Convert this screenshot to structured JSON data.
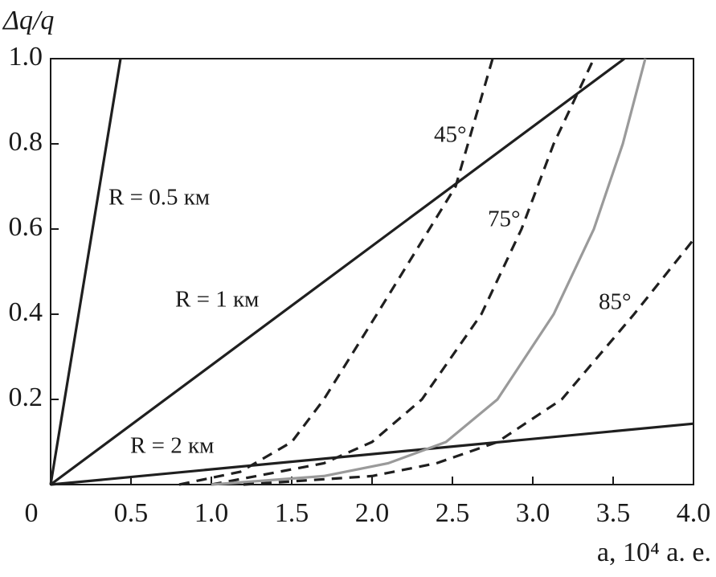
{
  "chart_data": {
    "type": "line",
    "y_label": "Δq/q",
    "x_label": "a, 10⁴ a. e.",
    "xlim": [
      0,
      4
    ],
    "ylim": [
      0,
      1
    ],
    "xticks": [
      0,
      0.5,
      {
        "value": 1,
        "label": "1.0"
      },
      1.5,
      {
        "value": 2,
        "label": "2.0"
      },
      2.5,
      {
        "value": 3,
        "label": "3.0"
      },
      3.5,
      {
        "value": 4,
        "label": "4.0"
      }
    ],
    "yticks": [
      0.2,
      0.4,
      0.6,
      0.8,
      {
        "value": 1,
        "label": "1.0"
      }
    ],
    "grid": false,
    "series": [
      {
        "name": "R = 0.5 км",
        "color": "#1f1f1f",
        "dashed": false,
        "x": [
          0,
          0.435
        ],
        "values": [
          0,
          1
        ]
      },
      {
        "name": "R = 1 км",
        "color": "#1f1f1f",
        "dashed": false,
        "x": [
          0,
          3.57
        ],
        "values": [
          0,
          1
        ]
      },
      {
        "name": "R = 2 км",
        "color": "#1f1f1f",
        "dashed": false,
        "x": [
          0,
          4
        ],
        "values": [
          0,
          0.143
        ]
      },
      {
        "name": "45°",
        "color": "#1f1f1f",
        "dashed": true,
        "x": [
          0.8,
          1.18,
          1.5,
          1.7,
          2.03,
          2.52,
          2.75
        ],
        "values": [
          0,
          0.03,
          0.1,
          0.2,
          0.4,
          0.7,
          1.0
        ]
      },
      {
        "name": "75°",
        "color": "#1f1f1f",
        "dashed": true,
        "x": [
          1.0,
          1.7,
          2.0,
          2.31,
          2.68,
          2.93,
          3.13,
          3.38
        ],
        "values": [
          0,
          0.05,
          0.1,
          0.2,
          0.4,
          0.6,
          0.8,
          1.0
        ]
      },
      {
        "color": "#9a9a9a",
        "dashed": false,
        "x": [
          1.0,
          1.7,
          2.1,
          2.46,
          2.78,
          3.13,
          3.38,
          3.56,
          3.7
        ],
        "values": [
          0,
          0.02,
          0.05,
          0.1,
          0.2,
          0.4,
          0.6,
          0.8,
          1.0
        ]
      },
      {
        "name": "85°",
        "color": "#1f1f1f",
        "dashed": true,
        "x": [
          1.2,
          2.0,
          2.4,
          2.78,
          3.18,
          3.63,
          4.0
        ],
        "values": [
          0,
          0.02,
          0.05,
          0.1,
          0.2,
          0.4,
          0.575
        ]
      }
    ]
  }
}
